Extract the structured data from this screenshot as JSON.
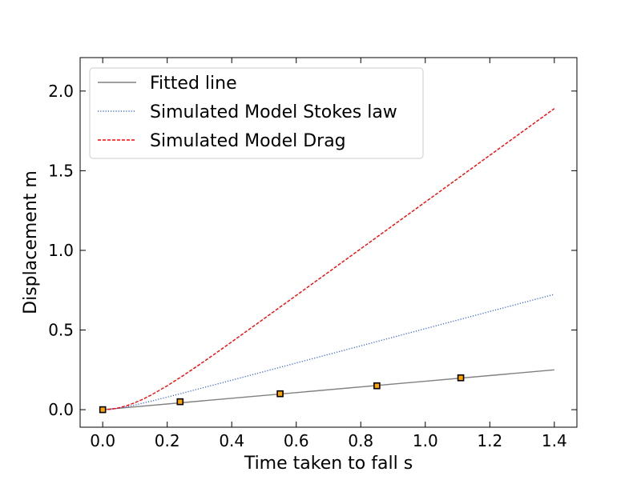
{
  "chart_data": {
    "type": "line",
    "title": "",
    "xlabel": "Time taken to fall s",
    "ylabel": "Displacement m",
    "xlim": [
      -0.07,
      1.47
    ],
    "ylim": [
      -0.11,
      2.21
    ],
    "x_ticks": [
      0.0,
      0.2,
      0.4,
      0.6,
      0.8,
      1.0,
      1.2,
      1.4
    ],
    "x_tick_labels": [
      "0.0",
      "0.2",
      "0.4",
      "0.6",
      "0.8",
      "1.0",
      "1.2",
      "1.4"
    ],
    "y_ticks": [
      0.0,
      0.5,
      1.0,
      1.5,
      2.0
    ],
    "y_tick_labels": [
      "0.0",
      "0.5",
      "1.0",
      "1.5",
      "2.0"
    ],
    "legend_position": "top-left",
    "grid": false,
    "series": [
      {
        "name": "Fitted line",
        "style": "solid",
        "color": "#808080",
        "x": [
          0.0,
          1.4
        ],
        "y": [
          0.0,
          0.25
        ]
      },
      {
        "name": "Simulated Model Stokes law",
        "style": "dotted",
        "color": "#4169e1",
        "x": [
          0.0,
          0.025,
          0.05,
          0.075,
          0.1,
          0.125,
          0.15,
          0.2,
          0.25,
          0.3,
          0.35,
          0.4,
          0.5,
          0.6,
          0.7,
          0.8,
          0.9,
          1.0,
          1.1,
          1.2,
          1.3,
          1.4
        ],
        "y": [
          0.0,
          0.0027,
          0.0095,
          0.0187,
          0.0295,
          0.0412,
          0.0534,
          0.0789,
          0.1051,
          0.1317,
          0.1584,
          0.1852,
          0.239,
          0.2929,
          0.3468,
          0.4007,
          0.4546,
          0.5085,
          0.5624,
          0.6163,
          0.6702,
          0.7241
        ]
      },
      {
        "name": "Simulated Model Drag",
        "style": "dashed",
        "color": "#ff0000",
        "x": [
          0.0,
          0.025,
          0.05,
          0.075,
          0.1,
          0.125,
          0.15,
          0.2,
          0.25,
          0.3,
          0.35,
          0.4,
          0.5,
          0.6,
          0.7,
          0.8,
          0.9,
          1.0,
          1.1,
          1.2,
          1.3,
          1.4
        ],
        "y": [
          0.0,
          0.0029,
          0.0115,
          0.0254,
          0.0438,
          0.0661,
          0.0917,
          0.15,
          0.2146,
          0.283,
          0.3536,
          0.4256,
          0.5711,
          0.7172,
          0.8633,
          1.01,
          1.1567,
          1.3033,
          1.45,
          1.5967,
          1.7433,
          1.89
        ]
      },
      {
        "name": "",
        "style": "markers",
        "color": "#ffa500",
        "x": [
          0.0,
          0.24,
          0.55,
          0.85,
          1.11
        ],
        "y": [
          0.0,
          0.05,
          0.1,
          0.15,
          0.2
        ]
      }
    ]
  }
}
